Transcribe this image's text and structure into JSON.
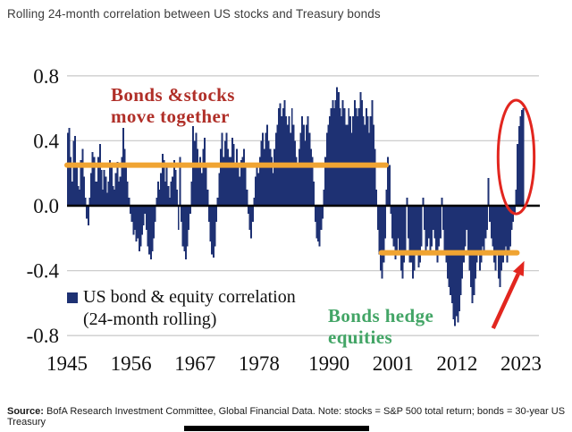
{
  "title": "Rolling 24-month correlation between US stocks and Treasury bonds",
  "source": {
    "label": "Source:",
    "text": " BofA Research Investment Committee, Global Financial Data. Note: stocks = S&P 500 total return; bonds = 30-year US Treasury"
  },
  "legend": {
    "line1": "US bond & equity correlation",
    "line2": "(24-month rolling)"
  },
  "annotations": {
    "positive": {
      "line1": "Bonds &stocks",
      "line2": "move together",
      "color": "#b02f28"
    },
    "negative": {
      "line1": "Bonds hedge",
      "line2": "equities",
      "color": "#43a566"
    }
  },
  "chart_data": {
    "type": "bar",
    "title": "Rolling 24-month correlation between US stocks and Treasury bonds",
    "xlabel": "",
    "ylabel": "",
    "ylim": [
      -0.8,
      0.8
    ],
    "xlim": [
      1945,
      2023.5
    ],
    "grid": "horizontal",
    "legend_position": "lower-left",
    "x_tick_labels": [
      "1945",
      "1956",
      "1967",
      "1978",
      "1990",
      "2001",
      "2012",
      "2023"
    ],
    "x_tick_years": [
      1945,
      1956,
      1967,
      1978,
      1990,
      2001,
      2012,
      2023
    ],
    "y_tick_labels": [
      "0.8",
      "0.4",
      "0.0",
      "-0.4",
      "-0.8"
    ],
    "y_tick_values": [
      0.8,
      0.4,
      0.0,
      -0.4,
      -0.8
    ],
    "bar_color": "#1e3173",
    "grid_color": "#cdcdcd",
    "axis_color": "#000000",
    "series_name": "US bond & equity correlation (24-month rolling)",
    "series_start_year": 1945.0,
    "series_step_years": 0.25,
    "values": [
      0.45,
      0.48,
      0.3,
      0.15,
      0.4,
      0.43,
      0.25,
      0.12,
      0.1,
      0.28,
      0.35,
      0.18,
      0.05,
      -0.08,
      -0.12,
      0.05,
      0.2,
      0.33,
      0.3,
      0.15,
      0.15,
      0.3,
      0.38,
      0.22,
      0.1,
      0.22,
      0.18,
      0.08,
      0.15,
      0.28,
      0.25,
      0.12,
      0.1,
      0.2,
      0.27,
      0.15,
      0.18,
      0.3,
      0.48,
      0.35,
      0.25,
      0.15,
      0.05,
      -0.05,
      -0.1,
      -0.18,
      -0.15,
      -0.22,
      -0.2,
      -0.28,
      -0.25,
      -0.18,
      -0.12,
      -0.05,
      -0.15,
      -0.25,
      -0.3,
      -0.33,
      -0.28,
      -0.2,
      -0.1,
      0.05,
      0.15,
      0.1,
      0.2,
      0.32,
      0.28,
      0.15,
      0.25,
      0.12,
      0.05,
      0.15,
      0.18,
      0.28,
      0.22,
      0.1,
      -0.15,
      0.3,
      -0.1,
      -0.25,
      -0.28,
      -0.33,
      -0.25,
      -0.15,
      -0.05,
      0.15,
      0.49,
      0.4,
      0.45,
      0.35,
      0.25,
      0.3,
      0.2,
      0.35,
      0.42,
      0.25,
      0.1,
      -0.1,
      -0.22,
      -0.3,
      -0.32,
      -0.25,
      -0.1,
      0.05,
      0.2,
      0.35,
      0.45,
      0.3,
      0.4,
      0.45,
      0.35,
      0.3,
      0.3,
      0.42,
      0.38,
      0.25,
      0.35,
      0.25,
      0.18,
      0.28,
      0.3,
      0.35,
      0.25,
      0.1,
      -0.05,
      -0.15,
      -0.2,
      -0.1,
      0.05,
      0.18,
      0.25,
      0.2,
      0.3,
      0.4,
      0.45,
      0.35,
      0.45,
      0.5,
      0.4,
      0.35,
      0.3,
      0.2,
      0.35,
      0.45,
      0.5,
      0.6,
      0.63,
      0.55,
      0.6,
      0.65,
      0.55,
      0.5,
      0.55,
      0.45,
      0.6,
      0.5,
      0.4,
      0.3,
      0.25,
      0.35,
      0.45,
      0.55,
      0.5,
      0.4,
      0.5,
      0.55,
      0.45,
      0.35,
      0.3,
      0.15,
      -0.1,
      -0.2,
      -0.22,
      -0.25,
      -0.15,
      -0.08,
      0.1,
      0.3,
      0.45,
      0.5,
      0.55,
      0.6,
      0.65,
      0.6,
      0.65,
      0.73,
      0.7,
      0.6,
      0.55,
      0.65,
      0.6,
      0.5,
      0.5,
      0.6,
      0.55,
      0.45,
      0.55,
      0.65,
      0.6,
      0.55,
      0.6,
      0.7,
      0.65,
      0.55,
      0.5,
      0.6,
      0.55,
      0.45,
      0.55,
      0.65,
      0.5,
      0.35,
      0.1,
      -0.15,
      -0.3,
      -0.4,
      -0.45,
      -0.35,
      -0.2,
      0.1,
      0.3,
      0.25,
      -0.05,
      -0.2,
      -0.25,
      -0.33,
      -0.28,
      -0.2,
      -0.3,
      -0.4,
      -0.45,
      -0.35,
      -0.3,
      0.05,
      -0.2,
      -0.35,
      -0.35,
      -0.45,
      -0.4,
      -0.3,
      -0.3,
      -0.38,
      -0.35,
      -0.25,
      0.05,
      -0.15,
      -0.3,
      -0.25,
      -0.2,
      -0.3,
      -0.25,
      -0.15,
      -0.2,
      -0.3,
      -0.35,
      -0.25,
      -0.2,
      0.05,
      -0.15,
      -0.3,
      -0.35,
      -0.45,
      -0.5,
      -0.55,
      -0.6,
      -0.7,
      -0.74,
      -0.68,
      -0.72,
      -0.65,
      -0.55,
      -0.45,
      -0.35,
      -0.25,
      -0.15,
      -0.3,
      -0.4,
      -0.5,
      -0.6,
      -0.55,
      -0.45,
      -0.35,
      -0.3,
      -0.4,
      -0.35,
      -0.25,
      -0.3,
      -0.2,
      -0.15,
      0.17,
      -0.1,
      -0.2,
      -0.25,
      -0.35,
      -0.4,
      -0.3,
      -0.45,
      -0.5,
      -0.4,
      -0.35,
      -0.3,
      -0.25,
      -0.35,
      -0.3,
      -0.25,
      -0.15,
      -0.1,
      -0.05,
      0.1,
      0.38,
      0.49,
      0.55,
      0.59,
      0.6
    ],
    "reference_lines": [
      {
        "value": 0.25,
        "year_start": 1945.0,
        "year_end": 1999.8,
        "color": "#f0a432"
      },
      {
        "value": -0.29,
        "year_start": 1999.0,
        "year_end": 2022.3,
        "color": "#f0a432"
      }
    ],
    "highlight_ellipse": {
      "center_year": 2022.15,
      "center_value": 0.3,
      "radius_years": 3.1,
      "radius_value": 0.35,
      "color": "#e2261f"
    },
    "arrow": {
      "from_year": 2018.2,
      "from_value": -0.755,
      "to_year": 2023.55,
      "to_value": -0.34,
      "color": "#e2261f"
    }
  }
}
